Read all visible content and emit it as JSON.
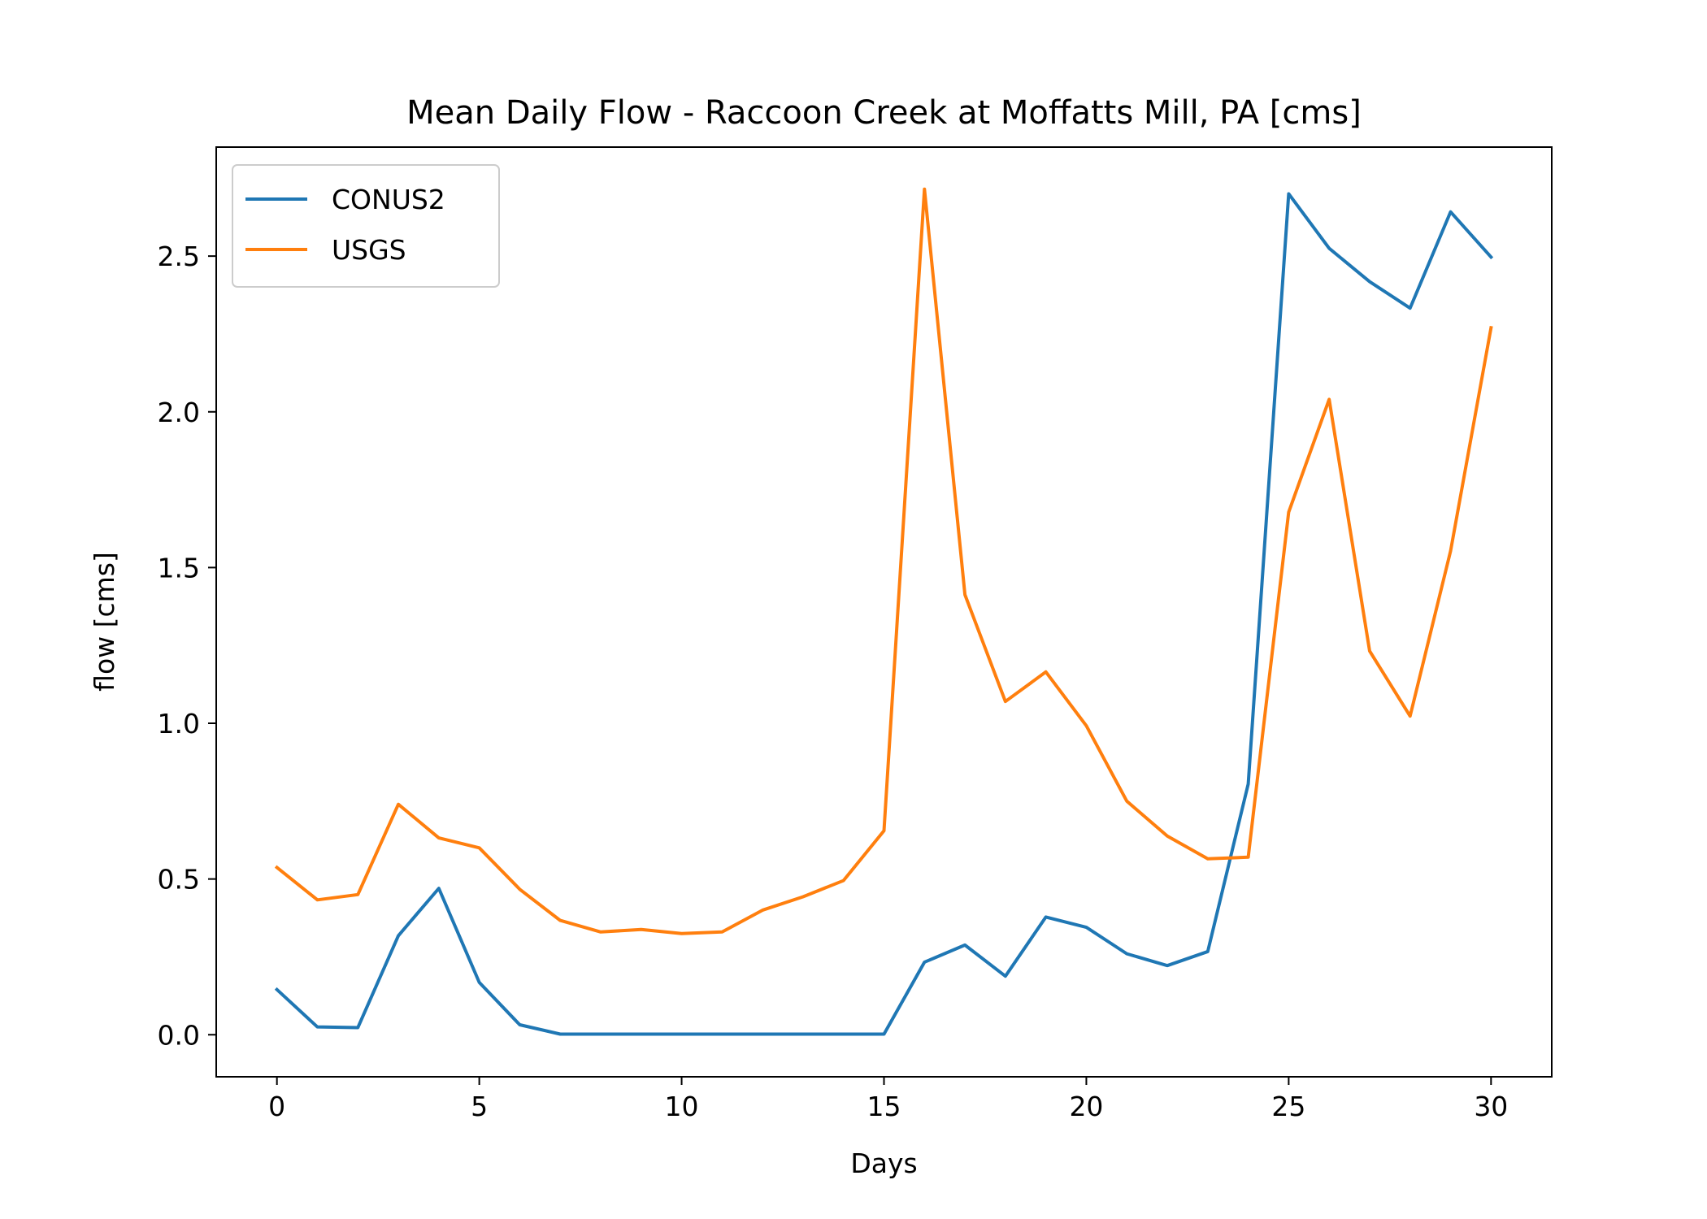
{
  "chart_data": {
    "type": "line",
    "title": "Mean Daily Flow - Raccoon Creek at Moffatts Mill, PA [cms]",
    "xlabel": "Days",
    "ylabel": "flow [cms]",
    "xlim": [
      -1.5,
      31.5
    ],
    "ylim": [
      -0.135,
      2.85
    ],
    "x_ticks": [
      0,
      5,
      10,
      15,
      20,
      25,
      30
    ],
    "x_tick_labels": [
      "0",
      "5",
      "10",
      "15",
      "20",
      "25",
      "30"
    ],
    "y_ticks": [
      0.0,
      0.5,
      1.0,
      1.5,
      2.0,
      2.5
    ],
    "y_tick_labels": [
      "0.0",
      "0.5",
      "1.0",
      "1.5",
      "2.0",
      "2.5"
    ],
    "grid": false,
    "legend_position": "top-left",
    "x": [
      0,
      1,
      2,
      3,
      4,
      5,
      6,
      7,
      8,
      9,
      10,
      11,
      12,
      13,
      14,
      15,
      16,
      17,
      18,
      19,
      20,
      21,
      22,
      23,
      24,
      25,
      26,
      27,
      28,
      29,
      30
    ],
    "series": [
      {
        "name": "CONUS2",
        "color": "#1f77b4",
        "values": [
          0.145,
          0.025,
          0.023,
          0.318,
          0.47,
          0.168,
          0.032,
          0.002,
          0.002,
          0.002,
          0.002,
          0.002,
          0.002,
          0.002,
          0.002,
          0.002,
          0.233,
          0.288,
          0.188,
          0.378,
          0.345,
          0.26,
          0.222,
          0.267,
          0.805,
          2.7,
          2.525,
          2.418,
          2.333,
          2.642,
          2.497
        ]
      },
      {
        "name": "USGS",
        "color": "#ff7f0e",
        "values": [
          0.537,
          0.433,
          0.45,
          0.74,
          0.632,
          0.6,
          0.467,
          0.367,
          0.33,
          0.338,
          0.325,
          0.33,
          0.4,
          0.443,
          0.495,
          0.655,
          2.715,
          1.413,
          1.07,
          1.165,
          0.992,
          0.75,
          0.638,
          0.565,
          0.57,
          1.678,
          2.04,
          1.232,
          1.023,
          1.553,
          2.27
        ]
      }
    ]
  }
}
